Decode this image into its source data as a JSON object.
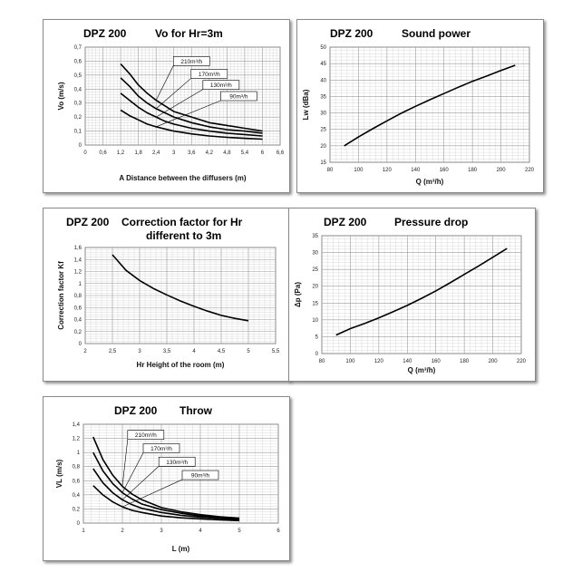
{
  "charts": [
    {
      "brand": "DPZ 200",
      "title": "Vo for Hr=3m",
      "chart_data": {
        "type": "line",
        "xlabel": "A Distance between the diffusers (m)",
        "ylabel": "Vo (m/s)",
        "xlim": [
          0,
          6.6
        ],
        "ylim": [
          0,
          0.7
        ],
        "xticks": [
          "0",
          "0,6",
          "1,2",
          "1,8",
          "2,4",
          "3",
          "3,6",
          "4,2",
          "4,8",
          "5,4",
          "6",
          "6,6"
        ],
        "yticks": [
          "0",
          "0,1",
          "0,2",
          "0,3",
          "0,4",
          "0,5",
          "0,6",
          "0,7"
        ],
        "xtick_values": [
          0,
          0.6,
          1.2,
          1.8,
          2.4,
          3,
          3.6,
          4.2,
          4.8,
          5.4,
          6,
          6.6
        ],
        "ytick_values": [
          0,
          0.1,
          0.2,
          0.3,
          0.4,
          0.5,
          0.6,
          0.7
        ],
        "grid": true,
        "series": [
          {
            "name": "210m³/h",
            "x": [
              1.2,
              1.5,
              1.8,
              2.1,
              2.4,
              2.7,
              3.0,
              3.6,
              4.2,
              4.8,
              5.4,
              6.0
            ],
            "values": [
              0.58,
              0.51,
              0.43,
              0.37,
              0.32,
              0.28,
              0.24,
              0.2,
              0.16,
              0.14,
              0.12,
              0.1
            ],
            "label_at": [
              3.6,
              0.6
            ]
          },
          {
            "name": "170m³/h",
            "x": [
              1.2,
              1.5,
              1.8,
              2.1,
              2.4,
              2.7,
              3.0,
              3.6,
              4.2,
              4.8,
              5.4,
              6.0
            ],
            "values": [
              0.48,
              0.42,
              0.35,
              0.3,
              0.26,
              0.23,
              0.2,
              0.16,
              0.13,
              0.11,
              0.1,
              0.085
            ],
            "label_at": [
              4.2,
              0.51
            ]
          },
          {
            "name": "130m³/h",
            "x": [
              1.2,
              1.5,
              1.8,
              2.1,
              2.4,
              2.7,
              3.0,
              3.6,
              4.2,
              4.8,
              5.4,
              6.0
            ],
            "values": [
              0.37,
              0.32,
              0.27,
              0.23,
              0.2,
              0.17,
              0.15,
              0.12,
              0.1,
              0.085,
              0.075,
              0.065
            ],
            "label_at": [
              4.6,
              0.43
            ]
          },
          {
            "name": "90m³/h",
            "x": [
              1.2,
              1.5,
              1.8,
              2.1,
              2.4,
              2.7,
              3.0,
              3.6,
              4.2,
              4.8,
              5.4,
              6.0
            ],
            "values": [
              0.25,
              0.21,
              0.18,
              0.15,
              0.13,
              0.115,
              0.1,
              0.08,
              0.065,
              0.055,
              0.048,
              0.042
            ],
            "label_at": [
              5.2,
              0.35
            ]
          }
        ]
      }
    },
    {
      "brand": "DPZ 200",
      "title": "Sound power",
      "chart_data": {
        "type": "line",
        "xlabel": "Q (m³/h)",
        "ylabel": "Lw (dBa)",
        "xlim": [
          80,
          220
        ],
        "ylim": [
          15,
          50
        ],
        "xticks": [
          "80",
          "100",
          "120",
          "140",
          "160",
          "180",
          "200",
          "220"
        ],
        "yticks": [
          "15",
          "20",
          "25",
          "30",
          "35",
          "40",
          "45",
          "50"
        ],
        "xtick_values": [
          80,
          100,
          120,
          140,
          160,
          180,
          200,
          220
        ],
        "ytick_values": [
          15,
          20,
          25,
          30,
          35,
          40,
          45,
          50
        ],
        "grid": true,
        "series": [
          {
            "name": "",
            "x": [
              90,
              100,
              110,
              120,
              130,
              140,
              150,
              160,
              170,
              180,
              190,
              200,
              210
            ],
            "values": [
              20,
              22.7,
              25.2,
              27.6,
              29.9,
              32,
              34,
              35.9,
              37.8,
              39.6,
              41.2,
              42.9,
              44.5
            ]
          }
        ]
      }
    },
    {
      "brand": "DPZ 200",
      "title": "Correction factor for Hr",
      "title2": "different to 3m",
      "chart_data": {
        "type": "line",
        "xlabel": "Hr Height of the room (m)",
        "ylabel": "Correction factor Kf",
        "xlim": [
          2,
          5.5
        ],
        "ylim": [
          0,
          1.6
        ],
        "xticks": [
          "2",
          "2,5",
          "3",
          "3,5",
          "4",
          "4,5",
          "5",
          "5,5"
        ],
        "yticks": [
          "0",
          "0,2",
          "0,4",
          "0,6",
          "0,8",
          "1",
          "1,2",
          "1,4",
          "1,6"
        ],
        "xtick_values": [
          2,
          2.5,
          3,
          3.5,
          4,
          4.5,
          5,
          5.5
        ],
        "ytick_values": [
          0,
          0.2,
          0.4,
          0.6,
          0.8,
          1,
          1.2,
          1.4,
          1.6
        ],
        "grid": true,
        "series": [
          {
            "name": "",
            "x": [
              2.5,
              2.75,
              3.0,
              3.25,
              3.5,
              3.75,
              4.0,
              4.25,
              4.5,
              4.75,
              5.0
            ],
            "values": [
              1.48,
              1.22,
              1.05,
              0.92,
              0.81,
              0.71,
              0.62,
              0.54,
              0.47,
              0.42,
              0.38
            ]
          }
        ]
      }
    },
    {
      "brand": "DPZ 200",
      "title": "Pressure drop",
      "chart_data": {
        "type": "line",
        "xlabel": "Q (m³/h)",
        "ylabel": "Δp (Pa)",
        "xlim": [
          80,
          220
        ],
        "ylim": [
          0,
          35
        ],
        "xticks": [
          "80",
          "100",
          "120",
          "140",
          "160",
          "180",
          "200",
          "220"
        ],
        "yticks": [
          "0",
          "5",
          "10",
          "15",
          "20",
          "25",
          "30",
          "35"
        ],
        "xtick_values": [
          80,
          100,
          120,
          140,
          160,
          180,
          200,
          220
        ],
        "ytick_values": [
          0,
          5,
          10,
          15,
          20,
          25,
          30,
          35
        ],
        "grid": true,
        "series": [
          {
            "name": "",
            "x": [
              90,
              100,
              110,
              120,
              130,
              140,
              150,
              160,
              170,
              180,
              190,
              200,
              210
            ],
            "values": [
              5.5,
              7.4,
              8.9,
              10.6,
              12.4,
              14.3,
              16.4,
              18.6,
              21,
              23.5,
              26,
              28.6,
              31.2
            ]
          }
        ]
      }
    },
    {
      "brand": "DPZ 200",
      "title": "Throw",
      "chart_data": {
        "type": "line",
        "xlabel": "L (m)",
        "ylabel": "VL (m/s)",
        "xlim": [
          1,
          6
        ],
        "ylim": [
          0,
          1.4
        ],
        "xticks": [
          "1",
          "2",
          "3",
          "4",
          "5",
          "6"
        ],
        "yticks": [
          "0",
          "0,2",
          "0,4",
          "0,6",
          "0,8",
          "1",
          "1,2",
          "1,4"
        ],
        "xtick_values": [
          1,
          2,
          3,
          4,
          5,
          6
        ],
        "ytick_values": [
          0,
          0.2,
          0.4,
          0.6,
          0.8,
          1,
          1.2,
          1.4
        ],
        "grid": true,
        "series": [
          {
            "name": "210m³/h",
            "x": [
              1.25,
              1.5,
              1.75,
              2.0,
              2.25,
              2.5,
              3.0,
              3.5,
              4.0,
              4.5,
              5.0
            ],
            "values": [
              1.22,
              0.9,
              0.68,
              0.52,
              0.41,
              0.33,
              0.22,
              0.16,
              0.12,
              0.09,
              0.07
            ],
            "label_at": [
              2.6,
              1.25
            ]
          },
          {
            "name": "170m³/h",
            "x": [
              1.25,
              1.5,
              1.75,
              2.0,
              2.25,
              2.5,
              3.0,
              3.5,
              4.0,
              4.5,
              5.0
            ],
            "values": [
              1.0,
              0.74,
              0.56,
              0.43,
              0.34,
              0.27,
              0.19,
              0.14,
              0.1,
              0.08,
              0.06
            ],
            "label_at": [
              3.0,
              1.06
            ]
          },
          {
            "name": "130m³/h",
            "x": [
              1.25,
              1.5,
              1.75,
              2.0,
              2.25,
              2.5,
              3.0,
              3.5,
              4.0,
              4.5,
              5.0
            ],
            "values": [
              0.77,
              0.57,
              0.43,
              0.33,
              0.26,
              0.21,
              0.15,
              0.11,
              0.085,
              0.065,
              0.05
            ],
            "label_at": [
              3.4,
              0.87
            ]
          },
          {
            "name": "90m³/h",
            "x": [
              1.25,
              1.5,
              1.75,
              2.0,
              2.25,
              2.5,
              3.0,
              3.5,
              4.0,
              4.5,
              5.0
            ],
            "values": [
              0.53,
              0.4,
              0.3,
              0.23,
              0.18,
              0.15,
              0.1,
              0.075,
              0.06,
              0.045,
              0.035
            ],
            "label_at": [
              4.0,
              0.68
            ]
          }
        ]
      }
    }
  ]
}
